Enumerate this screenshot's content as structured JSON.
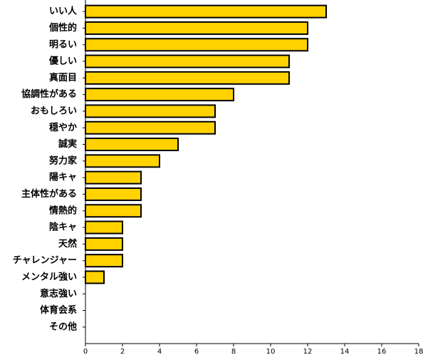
{
  "chart_data": {
    "type": "barh",
    "categories": [
      "いい人",
      "個性的",
      "明るい",
      "優しい",
      "真面目",
      "協調性がある",
      "おもしろい",
      "穏やか",
      "誠実",
      "努力家",
      "陽キャ",
      "主体性がある",
      "情熱的",
      "陰キャ",
      "天然",
      "チャレンジャー",
      "メンタル強い",
      "意志強い",
      "体育会系",
      "その他"
    ],
    "values": [
      13,
      12,
      12,
      11,
      11,
      8,
      7,
      7,
      5,
      4,
      3,
      3,
      3,
      2,
      2,
      2,
      1,
      0,
      0,
      0
    ],
    "color": "#ffd200",
    "xlim": [
      0,
      18
    ],
    "xticks": [
      0,
      2,
      4,
      6,
      8,
      10,
      12,
      14,
      16,
      18
    ]
  }
}
